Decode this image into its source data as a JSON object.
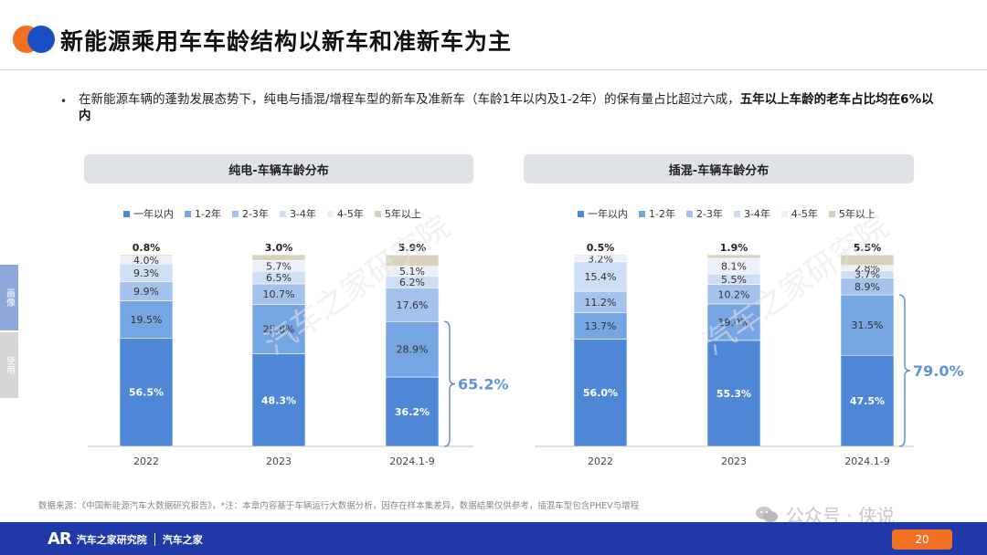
{
  "header": {
    "title": "新能源乘用车车龄结构以新车和准新车为主"
  },
  "bullet": {
    "marker": "•",
    "text_normal": "在新能源车辆的蓬勃发展态势下，纯电与插混/增程车型的新车及准新车（车龄1年以内及1-2年）的保有量占比超过六成，",
    "text_bold": "五年以上车龄的老车占比均在6%以内"
  },
  "side_tabs": [
    "画像",
    "使用"
  ],
  "legend_labels": [
    "一年以内",
    "1-2年",
    "2-3年",
    "3-4年",
    "4-5年",
    "5年以上"
  ],
  "colors": {
    "series": [
      "#4d87d6",
      "#76a5e3",
      "#a4c2ec",
      "#cfdef4",
      "#ecf1f9",
      "#d8d2bd"
    ],
    "accent_blue": "#1f3aa8",
    "accent_orange": "#f27022",
    "brace": "#5f93d8"
  },
  "chart_data": [
    {
      "type": "bar",
      "stacked": true,
      "title": "纯电-车辆车龄分布",
      "categories": [
        "2022",
        "2023",
        "2024.1-9"
      ],
      "series": [
        {
          "name": "一年以内",
          "values": [
            56.5,
            48.3,
            36.2
          ]
        },
        {
          "name": "1-2年",
          "values": [
            19.5,
            25.8,
            28.9
          ]
        },
        {
          "name": "2-3年",
          "values": [
            9.9,
            10.7,
            17.6
          ]
        },
        {
          "name": "3-4年",
          "values": [
            9.3,
            6.5,
            6.2
          ]
        },
        {
          "name": "4-5年",
          "values": [
            4.0,
            5.7,
            5.1
          ]
        },
        {
          "name": "5年以上",
          "values": [
            0.8,
            3.0,
            5.9
          ]
        }
      ],
      "annotation": {
        "text": "65.2%",
        "category": "2024.1-9"
      }
    },
    {
      "type": "bar",
      "stacked": true,
      "title": "插混-车辆车龄分布",
      "categories": [
        "2022",
        "2023",
        "2024.1-9"
      ],
      "series": [
        {
          "name": "一年以内",
          "values": [
            56.0,
            55.3,
            47.5
          ]
        },
        {
          "name": "1-2年",
          "values": [
            13.7,
            19.0,
            31.5
          ]
        },
        {
          "name": "2-3年",
          "values": [
            11.2,
            10.2,
            8.9
          ]
        },
        {
          "name": "3-4年",
          "values": [
            15.4,
            5.5,
            3.7
          ]
        },
        {
          "name": "4-5年",
          "values": [
            3.2,
            8.1,
            2.8
          ]
        },
        {
          "name": "5年以上",
          "values": [
            0.5,
            1.9,
            5.5
          ]
        }
      ],
      "annotation": {
        "text": "79.0%",
        "category": "2024.1-9"
      }
    }
  ],
  "source": "数据来源：《中国新能源汽车大数据研究报告》，*注：本章内容基于车辆运行大数据分析，因存在样本集差异，数据结果仅供参考，插混车型包含PHEV与增程",
  "footer": {
    "brand": "汽车之家研究院",
    "brand2": "汽车之家",
    "page": "20"
  },
  "wechat": {
    "text": "公众号 · 侠说"
  }
}
